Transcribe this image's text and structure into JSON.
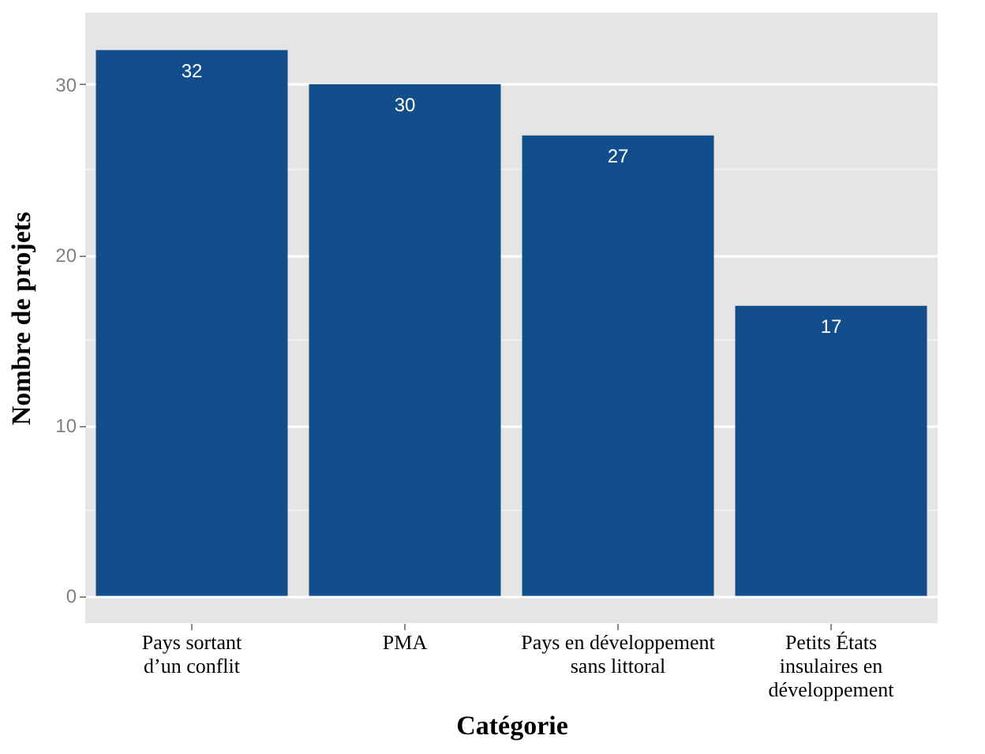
{
  "chart_data": {
    "type": "bar",
    "xlabel": "Catégorie",
    "ylabel": "Nombre de projets",
    "categories": [
      "Pays sortant\nd’un conflit",
      "PMA",
      "Pays en développement\nsans littoral",
      "Petits États\ninsulaires en\ndéveloppement"
    ],
    "values": [
      32,
      30,
      27,
      17
    ],
    "color": "#124e8c",
    "ylim": [
      -1.6,
      34.2
    ],
    "yticks": [
      0,
      10,
      20,
      30
    ],
    "grid": "y",
    "data_labels": true
  }
}
